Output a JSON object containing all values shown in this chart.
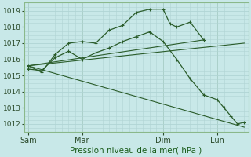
{
  "bg_color": "#c8e8e8",
  "grid_color": "#b0d4d4",
  "line_color": "#2a5c2a",
  "title": "Pression niveau de la mer( hPa )",
  "ylim": [
    1011.5,
    1019.5
  ],
  "yticks": [
    1012,
    1013,
    1014,
    1015,
    1016,
    1017,
    1018,
    1019
  ],
  "day_labels": [
    "Sam",
    "Mar",
    "Dim",
    "Lun"
  ],
  "day_positions": [
    0,
    4,
    10,
    14
  ],
  "xlim": [
    -0.3,
    16.3
  ],
  "curve1_x": [
    0,
    1,
    2,
    3,
    4,
    5,
    6,
    7,
    8,
    9,
    10,
    10.5,
    11,
    12,
    13
  ],
  "curve1_y": [
    1015.6,
    1015.2,
    1016.3,
    1017.0,
    1017.1,
    1017.0,
    1017.8,
    1018.1,
    1018.9,
    1019.1,
    1019.1,
    1018.2,
    1018.0,
    1018.3,
    1017.2
  ],
  "curve2_x": [
    0,
    1,
    2,
    3,
    4,
    5,
    6,
    7,
    8,
    9,
    10,
    11,
    12,
    13,
    14,
    14.5,
    15,
    15.5,
    16
  ],
  "curve2_y": [
    1015.4,
    1015.3,
    1016.1,
    1016.5,
    1016.0,
    1016.4,
    1016.7,
    1017.1,
    1017.4,
    1017.7,
    1017.1,
    1016.0,
    1014.8,
    1013.8,
    1013.5,
    1013.0,
    1012.5,
    1012.0,
    1012.1
  ],
  "trend1_x": [
    0,
    13
  ],
  "trend1_y": [
    1015.6,
    1017.2
  ],
  "trend2_x": [
    0,
    16
  ],
  "trend2_y": [
    1015.6,
    1017.0
  ],
  "trend3_x": [
    0,
    16
  ],
  "trend3_y": [
    1015.6,
    1011.8
  ]
}
